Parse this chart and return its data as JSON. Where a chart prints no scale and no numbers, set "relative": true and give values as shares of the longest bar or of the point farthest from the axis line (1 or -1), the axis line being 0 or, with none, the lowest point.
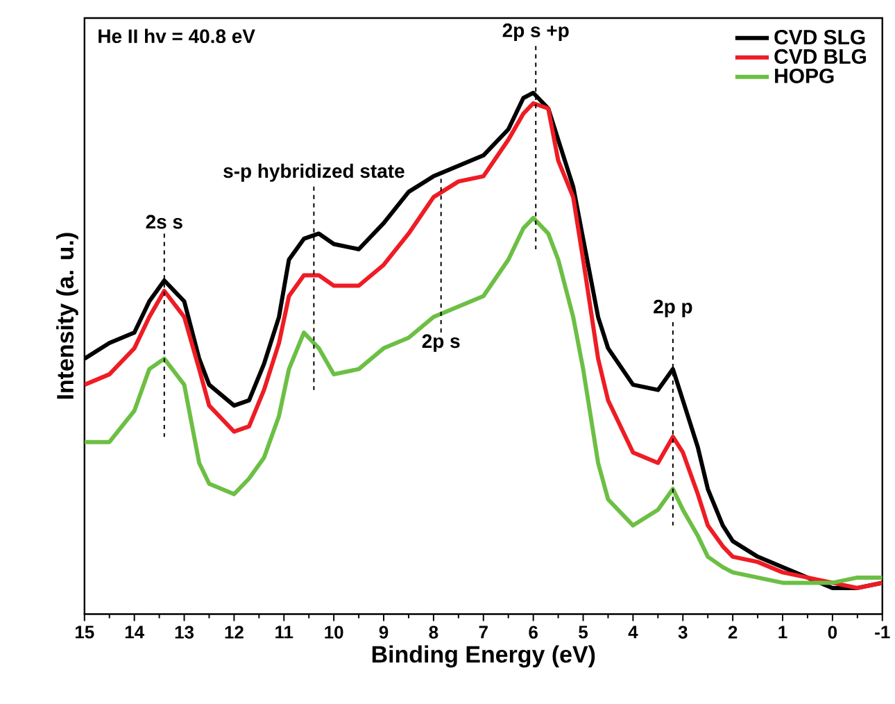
{
  "chart_data": {
    "type": "line",
    "relative": true,
    "xlabel": "Binding Energy (eV)",
    "ylabel": "Intensity (a. u.)",
    "xlim": [
      15,
      -1
    ],
    "xticks": [
      15,
      14,
      13,
      12,
      11,
      10,
      9,
      8,
      7,
      6,
      5,
      4,
      3,
      2,
      1,
      0,
      -1
    ],
    "x": [
      15,
      14.5,
      14,
      13.7,
      13.4,
      13,
      12.7,
      12.5,
      12,
      11.7,
      11.4,
      11.1,
      10.9,
      10.6,
      10.3,
      10,
      9.5,
      9,
      8.5,
      8,
      7.5,
      7,
      6.5,
      6.2,
      6,
      5.7,
      5.5,
      5.2,
      5,
      4.7,
      4.5,
      4,
      3.5,
      3.2,
      3,
      2.7,
      2.5,
      2.2,
      2,
      1.5,
      1,
      0.5,
      0,
      -0.5,
      -1
    ],
    "series": [
      {
        "name": "CVD SLG",
        "color": "#000000",
        "values": [
          0.49,
          0.52,
          0.54,
          0.6,
          0.64,
          0.6,
          0.49,
          0.44,
          0.4,
          0.41,
          0.48,
          0.57,
          0.68,
          0.72,
          0.73,
          0.71,
          0.7,
          0.75,
          0.81,
          0.84,
          0.86,
          0.88,
          0.93,
          0.99,
          1.0,
          0.97,
          0.91,
          0.82,
          0.72,
          0.57,
          0.51,
          0.44,
          0.43,
          0.47,
          0.41,
          0.32,
          0.24,
          0.17,
          0.14,
          0.11,
          0.09,
          0.07,
          0.05,
          0.05,
          0.06
        ]
      },
      {
        "name": "CVD BLG",
        "color": "#ee1c24",
        "values": [
          0.44,
          0.46,
          0.51,
          0.57,
          0.62,
          0.57,
          0.47,
          0.4,
          0.35,
          0.36,
          0.43,
          0.52,
          0.61,
          0.65,
          0.65,
          0.63,
          0.63,
          0.67,
          0.73,
          0.8,
          0.83,
          0.84,
          0.91,
          0.96,
          0.98,
          0.97,
          0.87,
          0.8,
          0.68,
          0.49,
          0.41,
          0.31,
          0.29,
          0.34,
          0.31,
          0.23,
          0.17,
          0.13,
          0.11,
          0.1,
          0.08,
          0.07,
          0.06,
          0.05,
          0.06
        ]
      },
      {
        "name": "HOPG",
        "color": "#6cbf44",
        "values": [
          0.33,
          0.33,
          0.39,
          0.47,
          0.49,
          0.44,
          0.29,
          0.25,
          0.23,
          0.26,
          0.3,
          0.38,
          0.47,
          0.54,
          0.51,
          0.46,
          0.47,
          0.51,
          0.53,
          0.57,
          0.59,
          0.61,
          0.68,
          0.74,
          0.76,
          0.73,
          0.68,
          0.57,
          0.47,
          0.29,
          0.22,
          0.17,
          0.2,
          0.24,
          0.2,
          0.15,
          0.11,
          0.09,
          0.08,
          0.07,
          0.06,
          0.06,
          0.06,
          0.07,
          0.07
        ]
      }
    ],
    "annotations": [
      "He II hv = 40.8 eV",
      {
        "text": "2s s",
        "x": 13.4,
        "y": 0.64
      },
      {
        "text": "s-p hybridized state",
        "x": 10.4,
        "y": 0.73
      },
      {
        "text": "2p s",
        "x": 7.85,
        "y": 0.58
      },
      {
        "text": "2p s +p",
        "x": 5.95,
        "y": 1.0
      },
      {
        "text": "2p p",
        "x": 3.2,
        "y": 0.47
      }
    ],
    "legend": "top right",
    "line_style": "solid"
  }
}
